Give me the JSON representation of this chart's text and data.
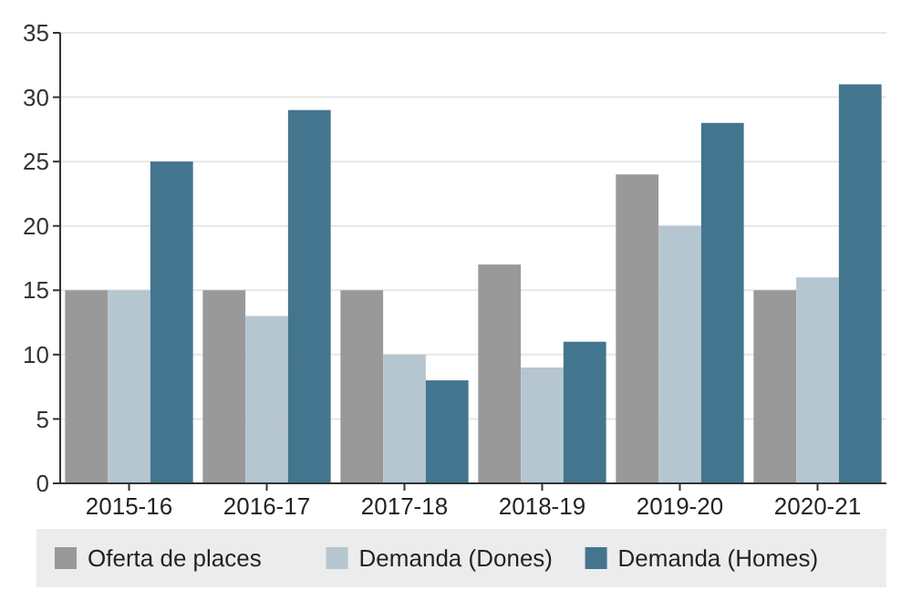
{
  "chart_data": {
    "type": "bar",
    "categories": [
      "2015-16",
      "2016-17",
      "2017-18",
      "2018-19",
      "2019-20",
      "2020-21"
    ],
    "series": [
      {
        "name": "Oferta de places",
        "color": "#999999",
        "values": [
          15,
          15,
          15,
          17,
          24,
          15
        ]
      },
      {
        "name": "Demanda (Dones)",
        "color": "#b6c6d0",
        "values": [
          15,
          13,
          10,
          9,
          20,
          16
        ]
      },
      {
        "name": "Demanda (Homes)",
        "color": "#43758e",
        "values": [
          25,
          29,
          8,
          11,
          28,
          31
        ]
      }
    ],
    "ylim": [
      0,
      35
    ],
    "yticks": [
      0,
      5,
      10,
      15,
      20,
      25,
      30,
      35
    ],
    "grid": "y",
    "legend": "bottom"
  }
}
